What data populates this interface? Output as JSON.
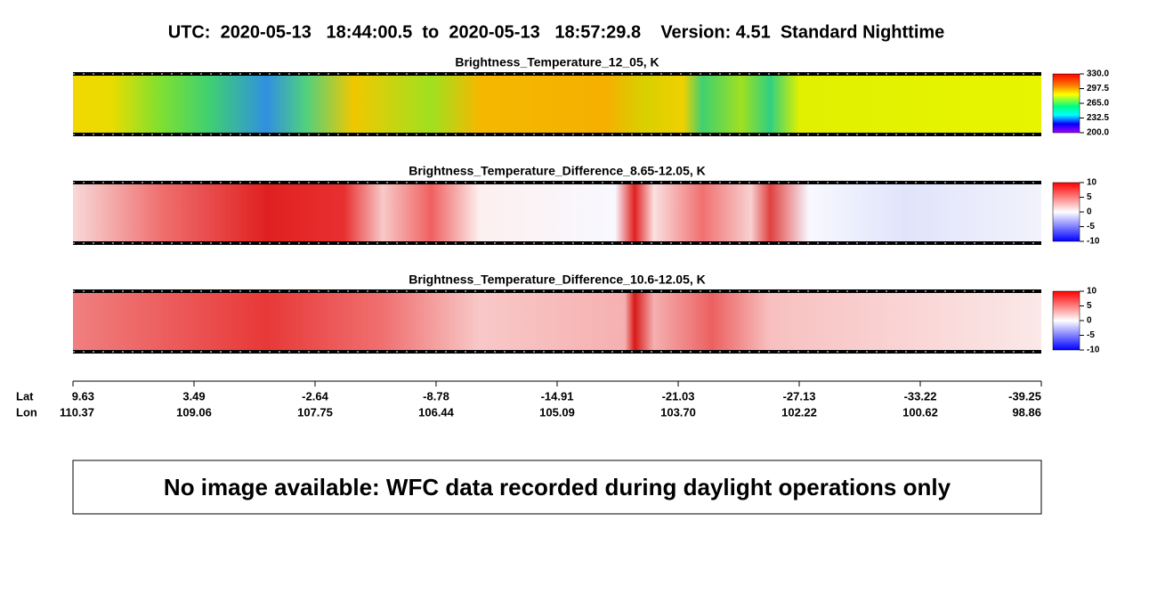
{
  "header": {
    "title": "UTC:  2020-05-13   18:44:00.5  to  2020-05-13   18:57:29.8    Version: 4.51  Standard Nighttime"
  },
  "panels": [
    {
      "title": "Brightness_Temperature_12_05, K",
      "colorbar_ticks": [
        "330.0",
        "297.5",
        "265.0",
        "232.5",
        "200.0"
      ]
    },
    {
      "title": "Brightness_Temperature_Difference_8.65-12.05, K",
      "colorbar_ticks": [
        "10",
        "5",
        "0",
        "-5",
        "-10"
      ]
    },
    {
      "title": "Brightness_Temperature_Difference_10.6-12.05, K",
      "colorbar_ticks": [
        "10",
        "5",
        "0",
        "-5",
        "-10"
      ]
    }
  ],
  "axis": {
    "lat_label": "Lat",
    "lon_label": "Lon",
    "lat": [
      "9.63",
      "3.49",
      "-2.64",
      "-8.78",
      "-14.91",
      "-21.03",
      "-27.13",
      "-33.22",
      "-39.25"
    ],
    "lon": [
      "110.37",
      "109.06",
      "107.75",
      "106.44",
      "105.09",
      "103.70",
      "102.22",
      "100.62",
      "98.86"
    ]
  },
  "message": "No image available: WFC data recorded during daylight operations only"
}
